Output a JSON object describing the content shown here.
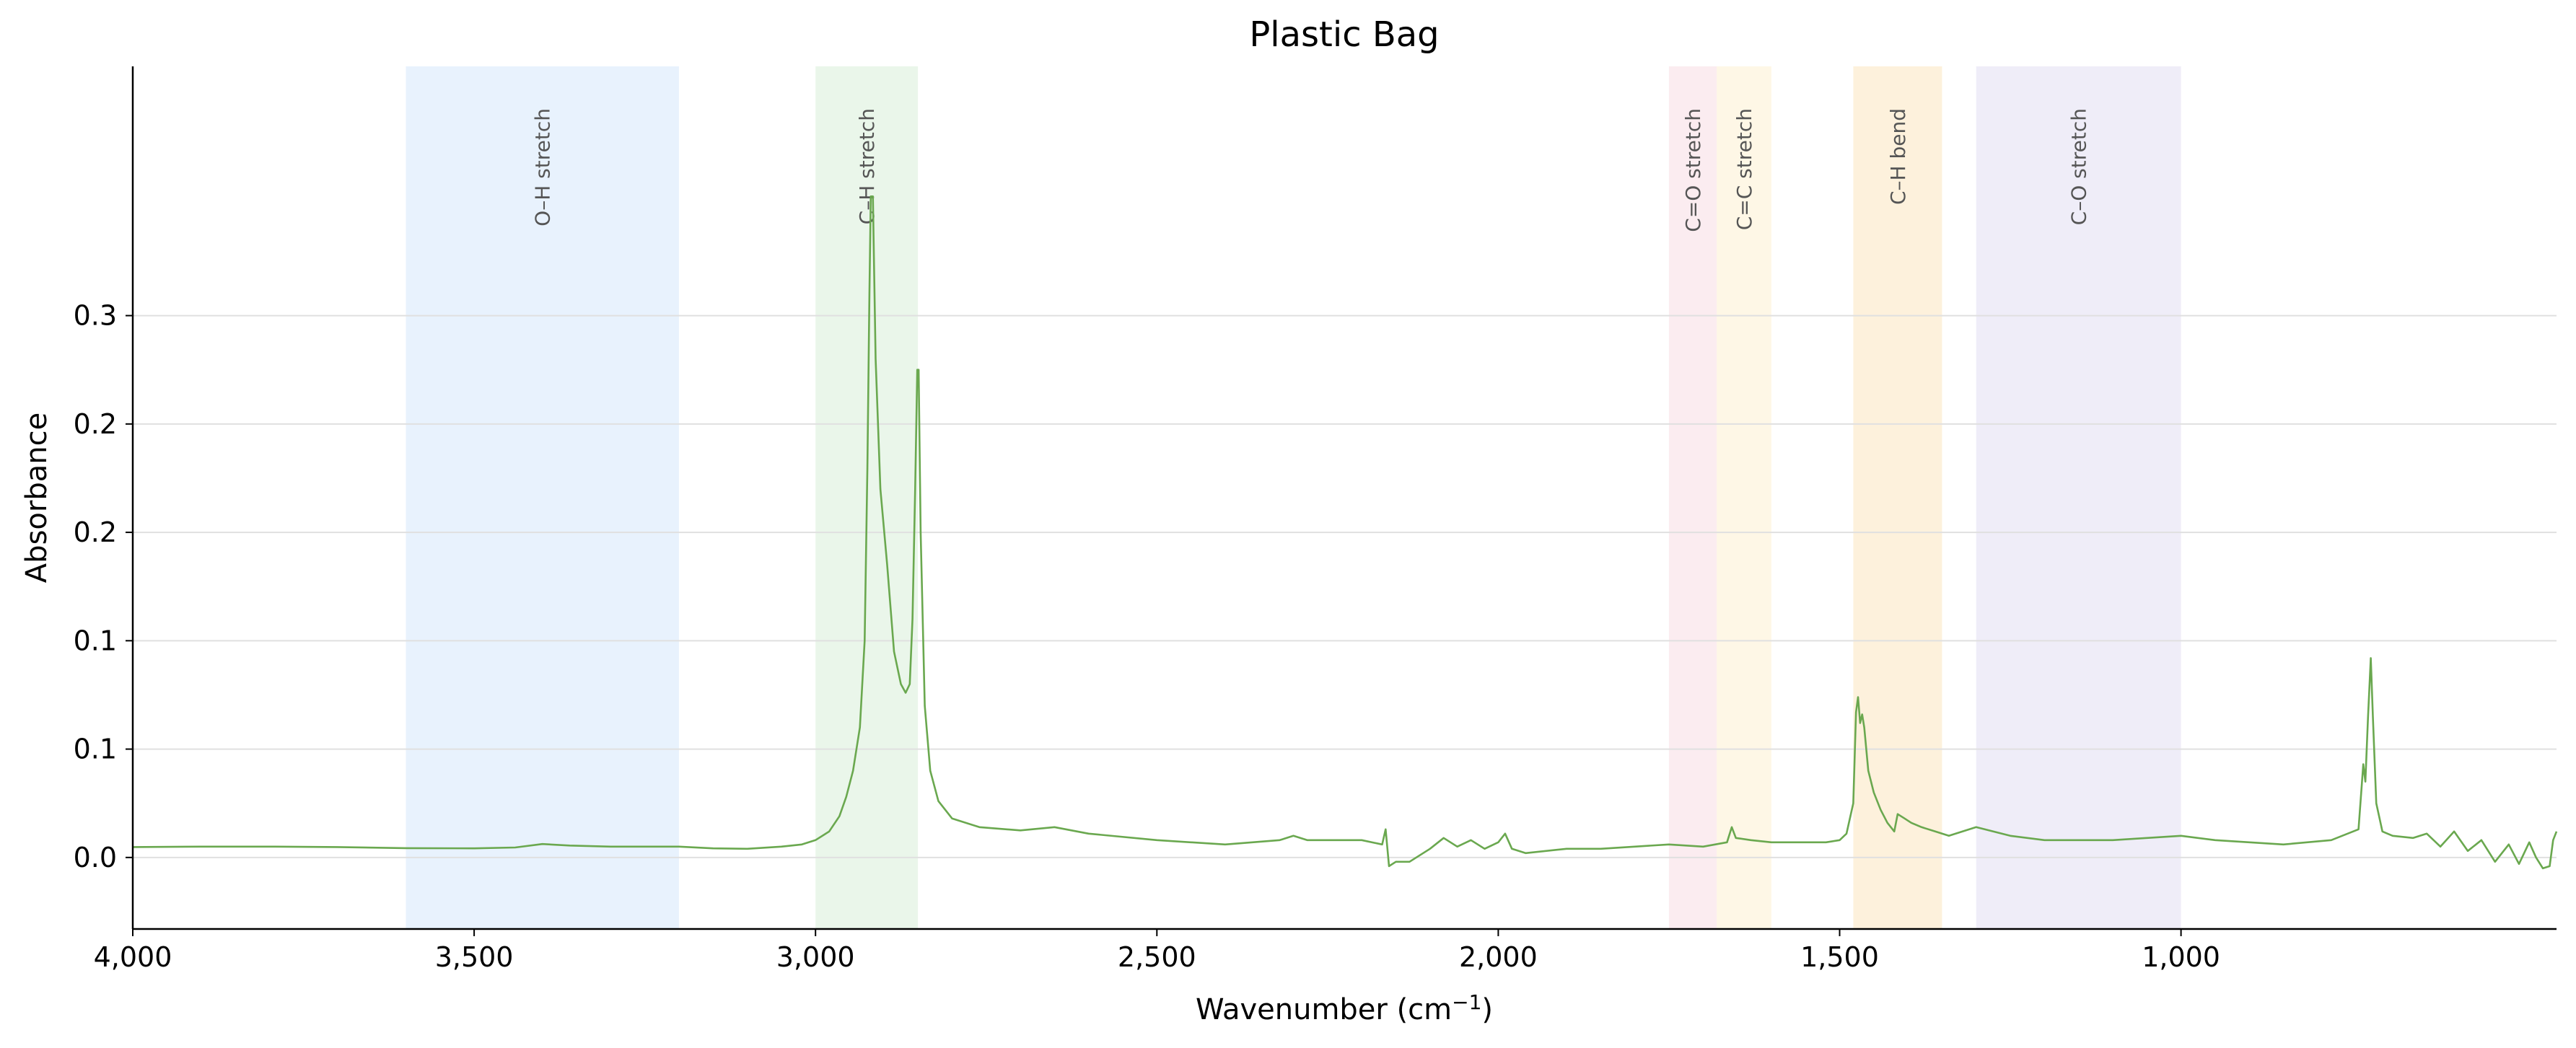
{
  "chart_data": {
    "type": "line",
    "title": "Plastic Bag",
    "xlabel": "Wavenumber (cm",
    "xlabel_sup": "−1",
    "xlabel_close": ")",
    "ylabel": "Absorbance",
    "xlim": [
      4000,
      450
    ],
    "ylim": [
      -0.033,
      0.365
    ],
    "x_reversed": true,
    "grid": "horizontal",
    "legend": "none",
    "x_ticks": [
      {
        "value": 4000,
        "label": "4,000"
      },
      {
        "value": 3500,
        "label": "3,500"
      },
      {
        "value": 3000,
        "label": "3,000"
      },
      {
        "value": 2500,
        "label": "2,500"
      },
      {
        "value": 2000,
        "label": "2,000"
      },
      {
        "value": 1500,
        "label": "1,500"
      },
      {
        "value": 1000,
        "label": "1,000"
      }
    ],
    "y_ticks": [
      {
        "value": 0.0,
        "label": "0.0"
      },
      {
        "value": 0.05,
        "label": "0.1"
      },
      {
        "value": 0.1,
        "label": "0.1"
      },
      {
        "value": 0.15,
        "label": "0.2"
      },
      {
        "value": 0.2,
        "label": "0.2"
      },
      {
        "value": 0.25,
        "label": "0.3"
      }
    ],
    "bands": [
      {
        "label": "O–H stretch",
        "from": 3600,
        "to": 3200,
        "color": "#d6e8fb"
      },
      {
        "label": "C–H stretch",
        "from": 3000,
        "to": 2850,
        "color": "#d8eed8"
      },
      {
        "label": "C=O stretch",
        "from": 1750,
        "to": 1680,
        "color": "#f8dde3"
      },
      {
        "label": "C=C stretch",
        "from": 1680,
        "to": 1600,
        "color": "#fdf0d2"
      },
      {
        "label": "C–H bend",
        "from": 1480,
        "to": 1350,
        "color": "#fbe6c0"
      },
      {
        "label": "C–O stretch",
        "from": 1300,
        "to": 1000,
        "color": "#e2dff2"
      }
    ],
    "series": [
      {
        "color": "#6aa84f",
        "points": [
          [
            4000,
            0.0048
          ],
          [
            3900,
            0.005
          ],
          [
            3800,
            0.005
          ],
          [
            3700,
            0.0048
          ],
          [
            3600,
            0.0043
          ],
          [
            3500,
            0.0042
          ],
          [
            3440,
            0.0046
          ],
          [
            3400,
            0.0062
          ],
          [
            3360,
            0.0055
          ],
          [
            3300,
            0.005
          ],
          [
            3200,
            0.005
          ],
          [
            3150,
            0.0042
          ],
          [
            3100,
            0.004
          ],
          [
            3050,
            0.005
          ],
          [
            3020,
            0.006
          ],
          [
            3000,
            0.008
          ],
          [
            2980,
            0.012
          ],
          [
            2965,
            0.019
          ],
          [
            2955,
            0.028
          ],
          [
            2945,
            0.04
          ],
          [
            2935,
            0.06
          ],
          [
            2928,
            0.1
          ],
          [
            2924,
            0.18
          ],
          [
            2921,
            0.26
          ],
          [
            2919,
            0.305
          ],
          [
            2916,
            0.305
          ],
          [
            2912,
            0.23
          ],
          [
            2905,
            0.17
          ],
          [
            2895,
            0.135
          ],
          [
            2885,
            0.095
          ],
          [
            2875,
            0.08
          ],
          [
            2868,
            0.076
          ],
          [
            2862,
            0.08
          ],
          [
            2858,
            0.11
          ],
          [
            2854,
            0.17
          ],
          [
            2851,
            0.225
          ],
          [
            2849,
            0.225
          ],
          [
            2846,
            0.15
          ],
          [
            2840,
            0.07
          ],
          [
            2832,
            0.04
          ],
          [
            2820,
            0.026
          ],
          [
            2800,
            0.018
          ],
          [
            2760,
            0.014
          ],
          [
            2700,
            0.0125
          ],
          [
            2650,
            0.014
          ],
          [
            2600,
            0.011
          ],
          [
            2500,
            0.008
          ],
          [
            2400,
            0.006
          ],
          [
            2320,
            0.008
          ],
          [
            2300,
            0.01
          ],
          [
            2280,
            0.008
          ],
          [
            2200,
            0.008
          ],
          [
            2170,
            0.006
          ],
          [
            2165,
            0.013
          ],
          [
            2160,
            -0.004
          ],
          [
            2150,
            -0.002
          ],
          [
            2130,
            -0.002
          ],
          [
            2100,
            0.004
          ],
          [
            2080,
            0.009
          ],
          [
            2060,
            0.005
          ],
          [
            2040,
            0.008
          ],
          [
            2020,
            0.004
          ],
          [
            2000,
            0.007
          ],
          [
            1990,
            0.011
          ],
          [
            1980,
            0.004
          ],
          [
            1960,
            0.002
          ],
          [
            1900,
            0.004
          ],
          [
            1850,
            0.004
          ],
          [
            1800,
            0.005
          ],
          [
            1750,
            0.006
          ],
          [
            1700,
            0.005
          ],
          [
            1665,
            0.007
          ],
          [
            1658,
            0.014
          ],
          [
            1652,
            0.009
          ],
          [
            1630,
            0.008
          ],
          [
            1600,
            0.007
          ],
          [
            1560,
            0.007
          ],
          [
            1520,
            0.007
          ],
          [
            1500,
            0.008
          ],
          [
            1490,
            0.011
          ],
          [
            1480,
            0.025
          ],
          [
            1476,
            0.067
          ],
          [
            1473,
            0.074
          ],
          [
            1470,
            0.062
          ],
          [
            1467,
            0.066
          ],
          [
            1464,
            0.06
          ],
          [
            1458,
            0.04
          ],
          [
            1450,
            0.03
          ],
          [
            1440,
            0.022
          ],
          [
            1430,
            0.016
          ],
          [
            1420,
            0.012
          ],
          [
            1415,
            0.02
          ],
          [
            1405,
            0.018
          ],
          [
            1395,
            0.016
          ],
          [
            1380,
            0.014
          ],
          [
            1360,
            0.012
          ],
          [
            1340,
            0.01
          ],
          [
            1300,
            0.014
          ],
          [
            1250,
            0.01
          ],
          [
            1200,
            0.008
          ],
          [
            1100,
            0.008
          ],
          [
            1000,
            0.01
          ],
          [
            950,
            0.008
          ],
          [
            900,
            0.007
          ],
          [
            850,
            0.006
          ],
          [
            780,
            0.008
          ],
          [
            740,
            0.013
          ],
          [
            733,
            0.043
          ],
          [
            730,
            0.035
          ],
          [
            726,
            0.065
          ],
          [
            722,
            0.092
          ],
          [
            719,
            0.065
          ],
          [
            714,
            0.025
          ],
          [
            705,
            0.012
          ],
          [
            690,
            0.01
          ],
          [
            660,
            0.009
          ],
          [
            640,
            0.011
          ],
          [
            620,
            0.005
          ],
          [
            600,
            0.012
          ],
          [
            580,
            0.003
          ],
          [
            560,
            0.008
          ],
          [
            540,
            -0.002
          ],
          [
            520,
            0.006
          ],
          [
            505,
            -0.003
          ],
          [
            490,
            0.007
          ],
          [
            480,
            0.0
          ],
          [
            470,
            -0.005
          ],
          [
            460,
            -0.004
          ],
          [
            455,
            0.008
          ],
          [
            450,
            0.012
          ]
        ]
      }
    ]
  }
}
